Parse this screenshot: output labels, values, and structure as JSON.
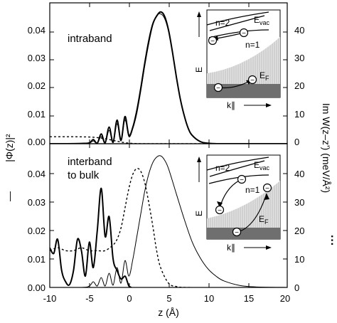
{
  "figure": {
    "left_axis_label": "|Φ(z)|²",
    "left_axis_key": "—",
    "right_axis_label": "Im W(z–z') (meV/Å²)",
    "right_axis_key": "···",
    "x_axis_label": "z (Å)"
  },
  "chart_data": [
    {
      "type": "line",
      "panel": "top",
      "annotation": "intraband",
      "xlim": [
        -10,
        20
      ],
      "ylim_left": [
        0,
        0.05
      ],
      "ylim_right": [
        0,
        50
      ],
      "left_ticks": [
        "0.00",
        "0.01",
        "0.02",
        "0.03",
        "0.04"
      ],
      "right_ticks": [
        "0",
        "10",
        "20",
        "30",
        "40"
      ],
      "series": [
        {
          "style": "thick-solid",
          "axis": "left",
          "x": [
            -10,
            -8,
            -6,
            -5,
            -4.5,
            -4,
            -3.5,
            -3,
            -2.5,
            -2,
            -1.5,
            -1,
            -0.5,
            0,
            0.5,
            1,
            1.5,
            2,
            2.5,
            3,
            3.5,
            4,
            4.5,
            5,
            5.5,
            6,
            6.5,
            7,
            7.5,
            8,
            9,
            10,
            12,
            20
          ],
          "y": [
            0,
            0,
            0.0001,
            0.0003,
            0.0015,
            0.0002,
            0.0035,
            0.0003,
            0.006,
            0.0005,
            0.0085,
            0.0012,
            0.0098,
            0.003,
            0.006,
            0.012,
            0.02,
            0.029,
            0.037,
            0.043,
            0.046,
            0.0475,
            0.046,
            0.041,
            0.033,
            0.024,
            0.016,
            0.01,
            0.0055,
            0.003,
            0.0008,
            0.0002,
            0,
            0
          ]
        },
        {
          "style": "thin-solid",
          "axis": "left",
          "x": [
            -10,
            -8,
            -6,
            -5,
            -4.5,
            -4,
            -3.5,
            -3,
            -2.5,
            -2,
            -1.5,
            -1,
            -0.5,
            0,
            0.5,
            1,
            1.5,
            2,
            2.5,
            3,
            3.5,
            4,
            4.5,
            5,
            5.5,
            6,
            6.5,
            7,
            7.5,
            8,
            9,
            10,
            12,
            20
          ],
          "y": [
            0,
            0,
            0.0001,
            0.0002,
            0.001,
            0.0001,
            0.0026,
            0.0002,
            0.0048,
            0.0004,
            0.0072,
            0.001,
            0.0086,
            0.0025,
            0.0055,
            0.011,
            0.019,
            0.028,
            0.036,
            0.0425,
            0.0462,
            0.0468,
            0.0452,
            0.0405,
            0.0328,
            0.0238,
            0.0158,
            0.0098,
            0.0054,
            0.0029,
            0.0008,
            0.0002,
            0,
            0
          ]
        },
        {
          "style": "dotted",
          "axis": "right",
          "x": [
            -10,
            -7,
            -5,
            -4,
            -3,
            -2,
            -1,
            0,
            1,
            2,
            3,
            4,
            5,
            6,
            8,
            20
          ],
          "y": [
            2.5,
            2.5,
            2.4,
            2.2,
            1.8,
            1.2,
            0.6,
            0.2,
            0.05,
            0,
            0,
            0,
            0,
            0,
            0,
            0
          ]
        }
      ],
      "inset": {
        "ylabel": "E",
        "xlabel": "k∥",
        "level_n2": "n=2",
        "level_n1": "n=1",
        "vacuum_label": "E",
        "vacuum_sub": "vac",
        "fermi_label": "E",
        "fermi_sub": "F"
      }
    },
    {
      "type": "line",
      "panel": "bottom",
      "annotation_line1": "interband",
      "annotation_line2": "to bulk",
      "xlim": [
        -10,
        20
      ],
      "ylim_left": [
        0,
        0.05
      ],
      "ylim_right": [
        0,
        50
      ],
      "left_ticks": [
        "0.00",
        "0.01",
        "0.02",
        "0.03",
        "0.04"
      ],
      "right_ticks": [
        "0",
        "10",
        "20",
        "30",
        "40"
      ],
      "x_ticks": [
        "-10",
        "-5",
        "0",
        "5",
        "10",
        "15",
        "20"
      ],
      "series": [
        {
          "style": "thick-solid",
          "axis": "left",
          "x": [
            -10,
            -9.5,
            -9,
            -8.5,
            -8,
            -7.5,
            -7,
            -6.5,
            -6,
            -5.5,
            -5,
            -4.5,
            -4,
            -3.5,
            -3,
            -2.5,
            -2,
            -1.5,
            -1,
            -0.5,
            -0.2,
            0,
            0.3
          ],
          "y": [
            0.014,
            0.012,
            0.017,
            0.006,
            0.002,
            0.001,
            0.006,
            0.017,
            0.013,
            0.004,
            0.016,
            0.007,
            0.02,
            0.035,
            0.018,
            0.025,
            0.01,
            0.006,
            0.003,
            0.004,
            0.002,
            0.0005,
            0
          ]
        },
        {
          "style": "thin-solid",
          "axis": "left",
          "x": [
            -10,
            -6,
            -5,
            -4.5,
            -4,
            -3.5,
            -3,
            -2.5,
            -2,
            -1.5,
            -1,
            -0.5,
            0,
            0.5,
            1,
            1.5,
            2,
            2.5,
            3,
            3.5,
            4,
            4.5,
            5,
            6,
            7,
            8,
            9,
            10,
            11,
            12,
            14,
            16,
            20
          ],
          "y": [
            0,
            0,
            0.0005,
            0.002,
            0.0005,
            0.0035,
            0.0005,
            0.005,
            0.0008,
            0.007,
            0.0015,
            0.0095,
            0.004,
            0.01,
            0.018,
            0.026,
            0.034,
            0.04,
            0.044,
            0.046,
            0.0465,
            0.045,
            0.042,
            0.033,
            0.024,
            0.016,
            0.0105,
            0.0065,
            0.004,
            0.0023,
            0.0007,
            0.0002,
            0
          ]
        },
        {
          "style": "dotted",
          "axis": "right",
          "x": [
            -10,
            -9,
            -8,
            -7,
            -6,
            -5,
            -4,
            -3,
            -2,
            -1.5,
            -1,
            -0.5,
            0,
            0.5,
            1,
            1.5,
            2,
            2.5,
            3,
            3.5,
            4,
            5,
            6,
            7,
            8
          ],
          "y": [
            13,
            14,
            13,
            13,
            14,
            13,
            13,
            13,
            15,
            17,
            21,
            28,
            35,
            40,
            42,
            41,
            37,
            30,
            22,
            13,
            7,
            1.5,
            0.3,
            0,
            0
          ]
        }
      ],
      "inset": {
        "ylabel": "E",
        "xlabel": "k∥",
        "level_n2": "n=2",
        "level_n1": "n=1",
        "vacuum_label": "E",
        "vacuum_sub": "vac",
        "fermi_label": "E",
        "fermi_sub": "F"
      }
    }
  ]
}
